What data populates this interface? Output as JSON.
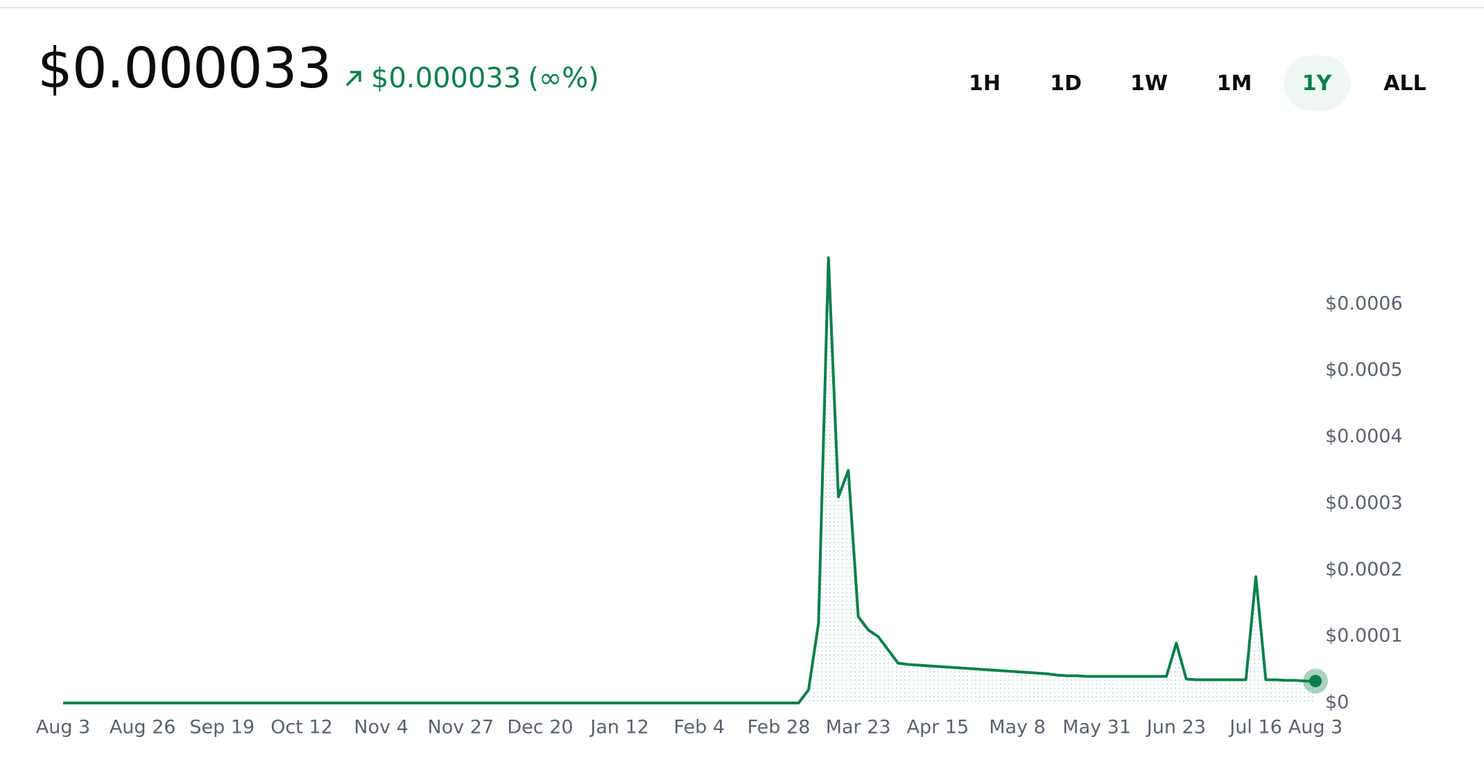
{
  "header": {
    "price": "$0.000033",
    "change": "$0.000033",
    "change_pct": "(∞%)",
    "timeframes": [
      "1H",
      "1D",
      "1W",
      "1M",
      "1Y",
      "ALL"
    ],
    "active_timeframe": "1Y"
  },
  "chart_data": {
    "type": "line",
    "categories": [
      "Aug 3",
      null,
      null,
      null,
      null,
      null,
      null,
      null,
      "Aug 26",
      null,
      null,
      null,
      null,
      null,
      null,
      null,
      "Sep 19",
      null,
      null,
      null,
      null,
      null,
      null,
      null,
      "Oct 12",
      null,
      null,
      null,
      null,
      null,
      null,
      null,
      "Nov 4",
      null,
      null,
      null,
      null,
      null,
      null,
      null,
      "Nov 27",
      null,
      null,
      null,
      null,
      null,
      null,
      null,
      "Dec 20",
      null,
      null,
      null,
      null,
      null,
      null,
      null,
      "Jan 12",
      null,
      null,
      null,
      null,
      null,
      null,
      null,
      "Feb 4",
      null,
      null,
      null,
      null,
      null,
      null,
      null,
      "Feb 28",
      null,
      null,
      null,
      null,
      null,
      null,
      null,
      "Mar 23",
      null,
      null,
      null,
      null,
      null,
      null,
      null,
      "Apr 15",
      null,
      null,
      null,
      null,
      null,
      null,
      null,
      "May 8",
      null,
      null,
      null,
      null,
      null,
      null,
      null,
      "May 31",
      null,
      null,
      null,
      null,
      null,
      null,
      null,
      "Jun 23",
      null,
      null,
      null,
      null,
      null,
      null,
      null,
      "Jul 16",
      null,
      null,
      null,
      null,
      null,
      "Aug 3"
    ],
    "series": [
      {
        "color": "#0b7f4b",
        "values": [
          0,
          0,
          0,
          0,
          0,
          0,
          0,
          0,
          0,
          0,
          0,
          0,
          0,
          0,
          0,
          0,
          0,
          0,
          0,
          0,
          0,
          0,
          0,
          0,
          0,
          0,
          0,
          0,
          0,
          0,
          0,
          0,
          0,
          0,
          0,
          0,
          0,
          0,
          0,
          0,
          0,
          0,
          0,
          0,
          0,
          0,
          0,
          0,
          0,
          0,
          0,
          0,
          0,
          0,
          0,
          0,
          0,
          0,
          0,
          0,
          0,
          0,
          0,
          0,
          0,
          0,
          0,
          0,
          0,
          0,
          0,
          0,
          0,
          0,
          0,
          2e-05,
          0.00012,
          0.00067,
          0.00031,
          0.00035,
          0.00013,
          0.00011,
          0.0001,
          8e-05,
          6e-05,
          5.8e-05,
          5.7e-05,
          5.6e-05,
          5.5e-05,
          5.4e-05,
          5.3e-05,
          5.2e-05,
          5.1e-05,
          5e-05,
          4.9e-05,
          4.8e-05,
          4.7e-05,
          4.6e-05,
          4.5e-05,
          4.4e-05,
          4.2e-05,
          4.1e-05,
          4.1e-05,
          4e-05,
          4e-05,
          4e-05,
          4e-05,
          4e-05,
          4e-05,
          4e-05,
          4e-05,
          4e-05,
          9e-05,
          3.6e-05,
          3.5e-05,
          3.5e-05,
          3.5e-05,
          3.5e-05,
          3.5e-05,
          3.5e-05,
          0.00019,
          3.5e-05,
          3.5e-05,
          3.4e-05,
          3.4e-05,
          3.3e-05,
          3.3e-05
        ]
      }
    ],
    "ylim": [
      0,
      0.0007
    ],
    "yticks": [
      {
        "value": 0,
        "label": "$0"
      },
      {
        "value": 0.0001,
        "label": "$0.0001"
      },
      {
        "value": 0.0002,
        "label": "$0.0002"
      },
      {
        "value": 0.0003,
        "label": "$0.0003"
      },
      {
        "value": 0.0004,
        "label": "$0.0004"
      },
      {
        "value": 0.0005,
        "label": "$0.0005"
      },
      {
        "value": 0.0006,
        "label": "$0.0006"
      }
    ],
    "grid": false
  }
}
